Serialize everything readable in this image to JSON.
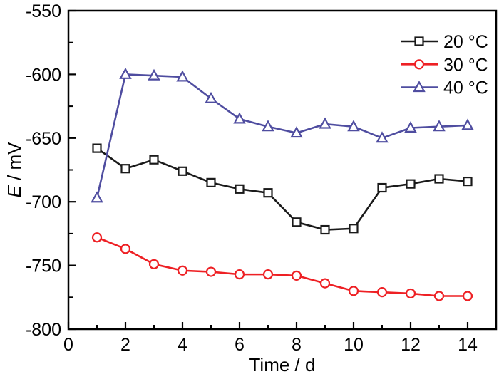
{
  "chart_data": {
    "type": "line",
    "title": "",
    "xlabel": "Time / d",
    "ylabel": "E / mV",
    "ylabel_symbol": "E",
    "ylabel_unit": " / mV",
    "xlim": [
      0,
      15
    ],
    "ylim": [
      -800,
      -550
    ],
    "x_major_ticks": [
      0,
      2,
      4,
      6,
      8,
      10,
      12,
      14
    ],
    "x_minor_ticks": [
      1,
      3,
      5,
      7,
      9,
      11,
      13
    ],
    "y_major_ticks": [
      -550,
      -600,
      -650,
      -700,
      -750,
      -800
    ],
    "y_minor_ticks": [
      -575,
      -625,
      -675,
      -725,
      -775
    ],
    "grid": false,
    "legend_position": "top-right",
    "axis_color": "#000000",
    "background_color": "#ffffff",
    "x": [
      1,
      2,
      3,
      4,
      5,
      6,
      7,
      8,
      9,
      10,
      11,
      12,
      13,
      14
    ],
    "series": [
      {
        "id": "20c",
        "name": "20 °C",
        "marker": "square",
        "color": "#1a1a1a",
        "values": [
          -658,
          -674,
          -667,
          -676,
          -685,
          -690,
          -693,
          -716,
          -722,
          -721,
          -689,
          -686,
          -682,
          -684
        ]
      },
      {
        "id": "30c",
        "name": "30 °C",
        "marker": "circle",
        "color": "#ee2024",
        "values": [
          -728,
          -737,
          -749,
          -754,
          -755,
          -757,
          -757,
          -758,
          -764,
          -770,
          -771,
          -772,
          -774,
          -774
        ]
      },
      {
        "id": "40c",
        "name": "40 °C",
        "marker": "triangle",
        "color": "#4f4da0",
        "values": [
          -697,
          -600,
          -601,
          -602,
          -619,
          -635,
          -641,
          -646,
          -639,
          -641,
          -650,
          -642,
          -641,
          -640
        ]
      }
    ]
  }
}
